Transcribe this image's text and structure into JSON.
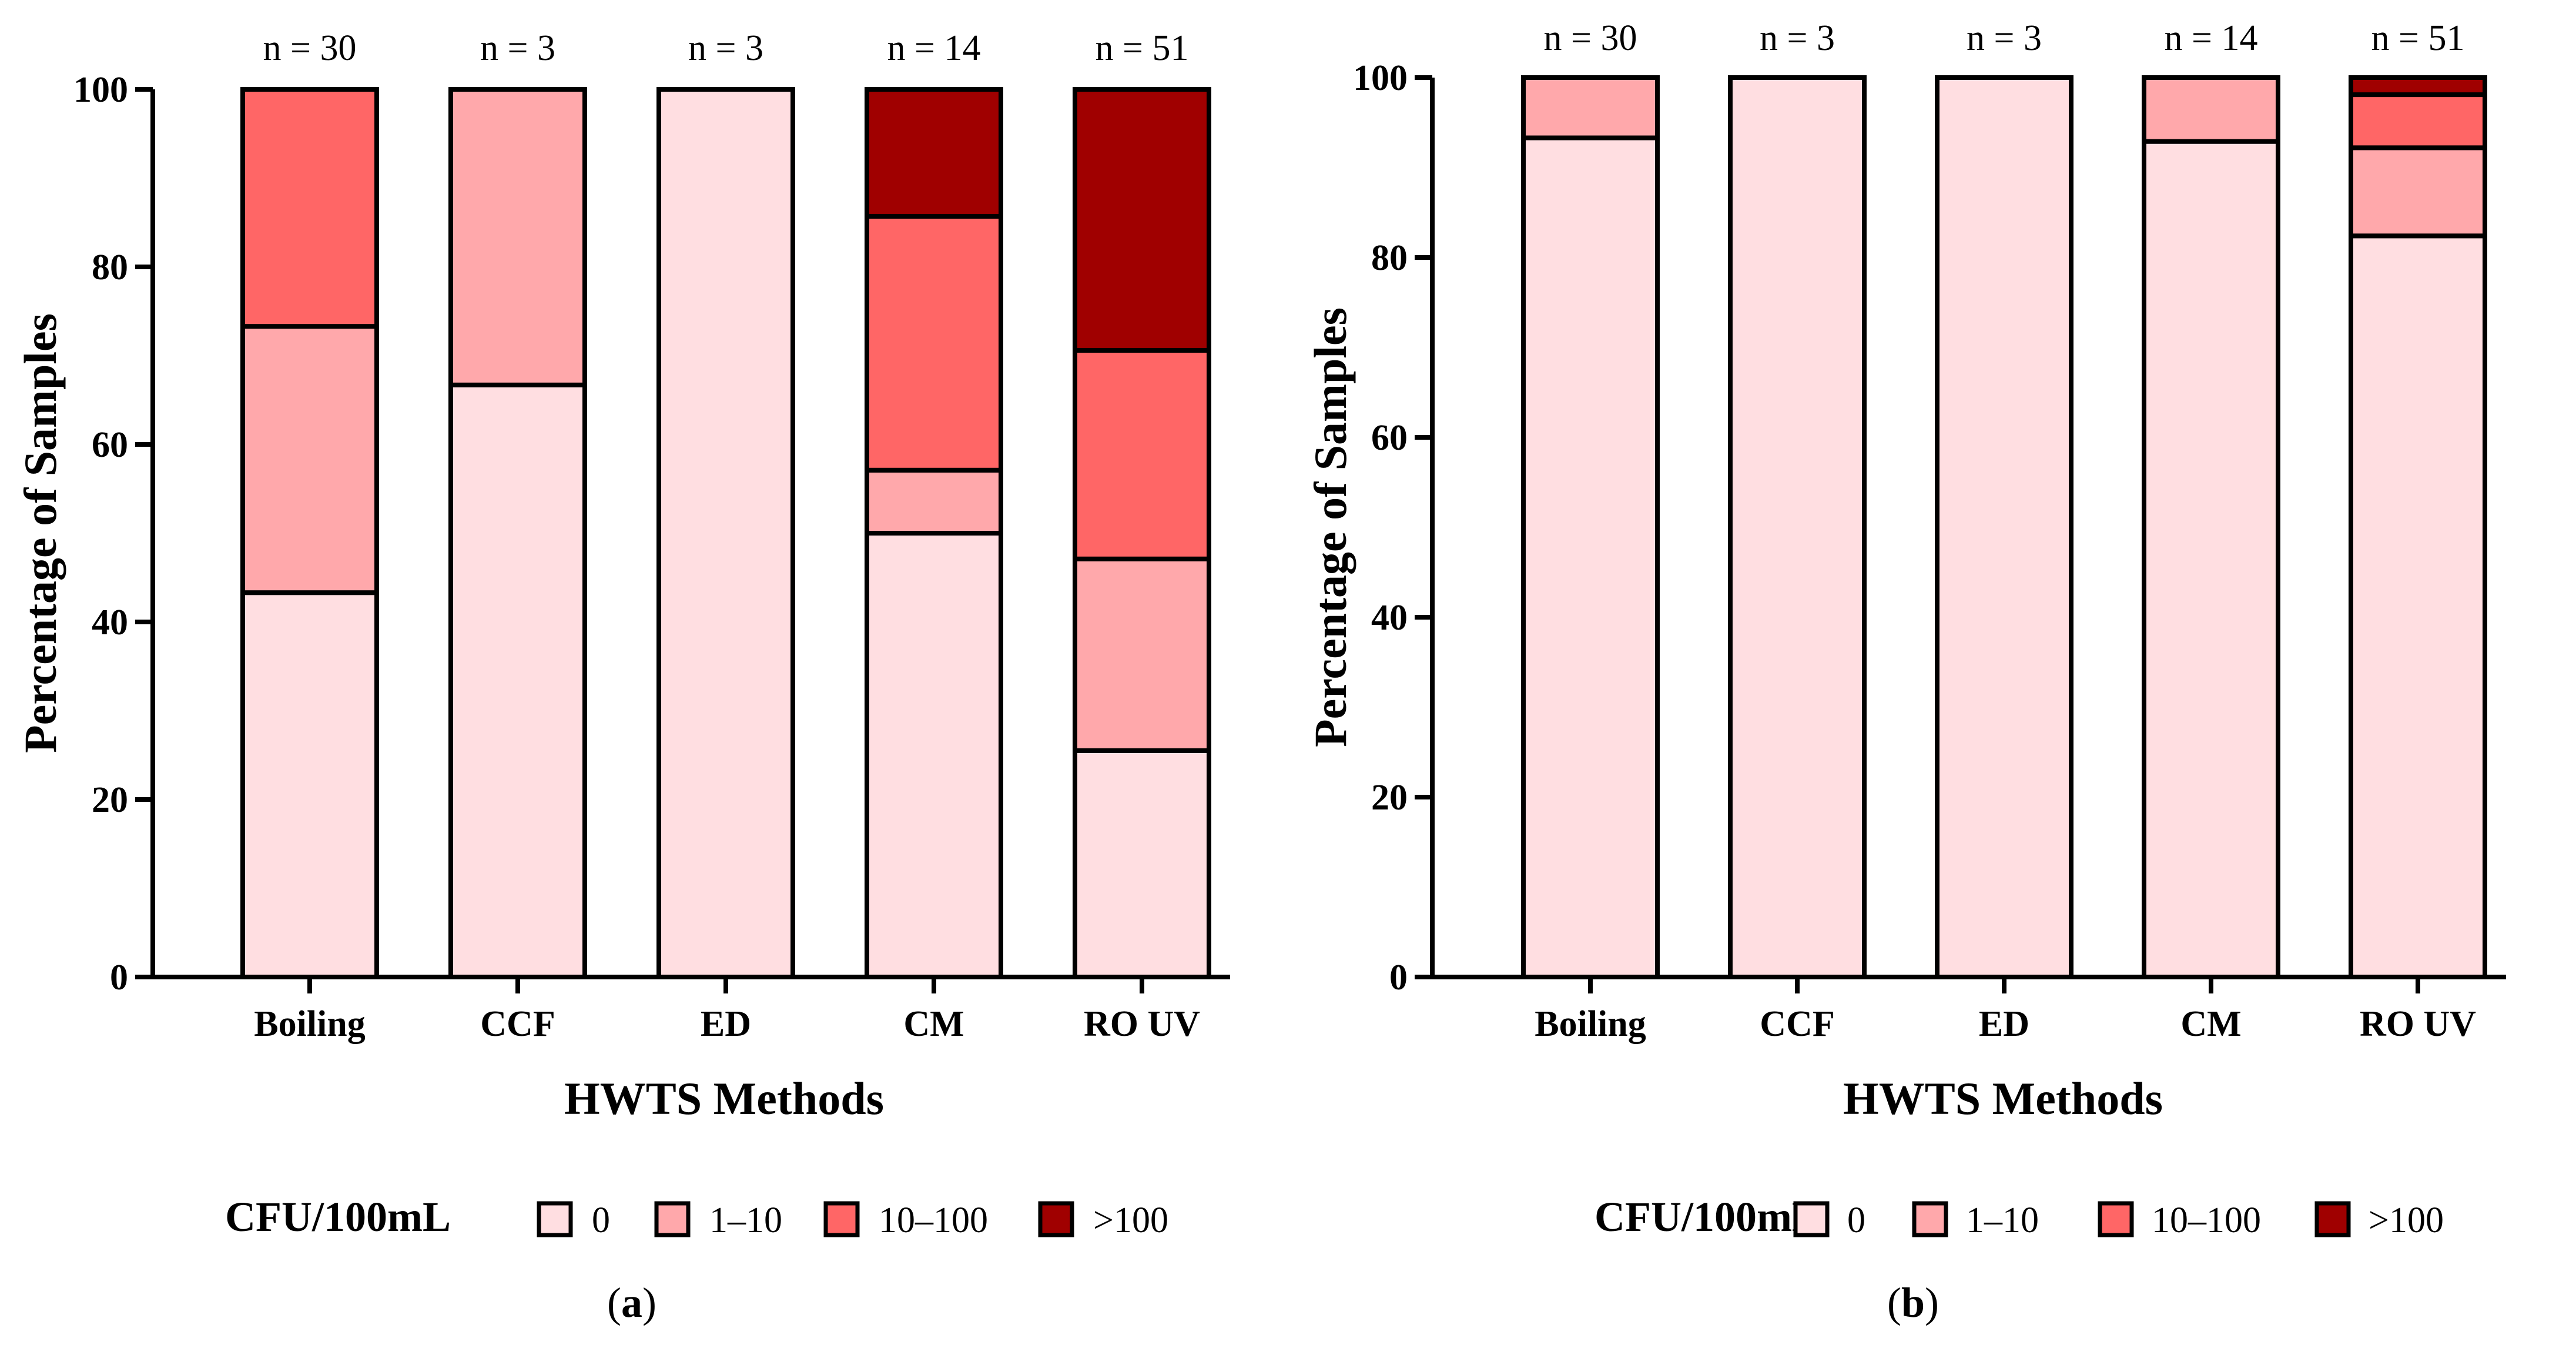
{
  "chart_data": [
    {
      "type": "bar",
      "stacked": true,
      "panel_label": "a",
      "xlabel": "HWTS  Methods",
      "ylabel": "Percentage of Samples",
      "ylim": [
        0,
        100
      ],
      "yticks": [
        0,
        20,
        40,
        60,
        80,
        100
      ],
      "categories": [
        "Boiling",
        "CCF",
        "ED",
        "CM",
        "RO UV"
      ],
      "sample_sizes": [
        "n = 30",
        "n = 3",
        "n = 3",
        "n = 14",
        "n = 51"
      ],
      "legend_title": "CFU/100mL",
      "series": [
        {
          "name": "0",
          "color": "#FFDEE1",
          "values": [
            43.3,
            66.7,
            100,
            50.0,
            25.5
          ]
        },
        {
          "name": "1–10",
          "color": "#FFA8AB",
          "values": [
            30.0,
            33.3,
            0,
            7.1,
            21.6
          ]
        },
        {
          "name": "10–100",
          "color": "#FF6666",
          "values": [
            26.7,
            0,
            0,
            28.6,
            23.5
          ]
        },
        {
          "name": ">100",
          "color": "#A00000",
          "values": [
            0,
            0,
            0,
            14.3,
            29.4
          ]
        }
      ]
    },
    {
      "type": "bar",
      "stacked": true,
      "panel_label": "b",
      "xlabel": "HWTS Methods",
      "ylabel": "Percentage of Samples",
      "ylim": [
        0,
        100
      ],
      "yticks": [
        0,
        20,
        40,
        60,
        80,
        100
      ],
      "categories": [
        "Boiling",
        "CCF",
        "ED",
        "CM",
        "RO UV"
      ],
      "sample_sizes": [
        "n = 30",
        "n = 3",
        "n = 3",
        "n = 14",
        "n = 51"
      ],
      "legend_title": "CFU/100mL",
      "series": [
        {
          "name": "0",
          "color": "#FFDEE1",
          "values": [
            93.3,
            100,
            100,
            92.9,
            82.4
          ]
        },
        {
          "name": "1–10",
          "color": "#FFA8AB",
          "values": [
            6.7,
            0,
            0,
            7.1,
            9.8
          ]
        },
        {
          "name": "10–100",
          "color": "#FF6666",
          "values": [
            0,
            0,
            0,
            0,
            5.9
          ]
        },
        {
          "name": ">100",
          "color": "#A00000",
          "values": [
            0,
            0,
            0,
            0,
            1.9
          ]
        }
      ]
    }
  ]
}
